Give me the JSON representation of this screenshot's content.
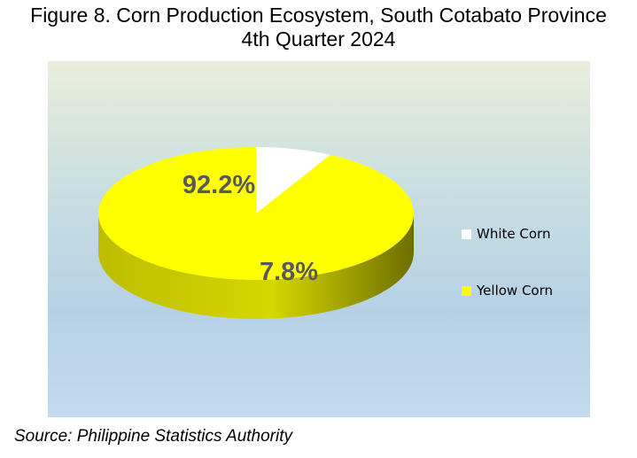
{
  "title_line1": "Figure 8. Corn Production Ecosystem, South Cotabato Province",
  "title_line2": "4th Quarter 2024",
  "source": "Source: Philippine Statistics Authority",
  "chart_data": {
    "type": "pie",
    "title": "Figure 8. Corn Production Ecosystem, South Cotabato Province 4th Quarter 2024",
    "slices": [
      {
        "name": "White Corn",
        "value": 7.8,
        "label": "7.8%",
        "color": "#ffffff",
        "side_color": "#8c8c8c"
      },
      {
        "name": "Yellow Corn",
        "value": 92.2,
        "label": "92.2%",
        "color": "#ffff00",
        "side_color": "#bdbd00"
      }
    ],
    "legend_placement": "right",
    "style": "3d"
  }
}
